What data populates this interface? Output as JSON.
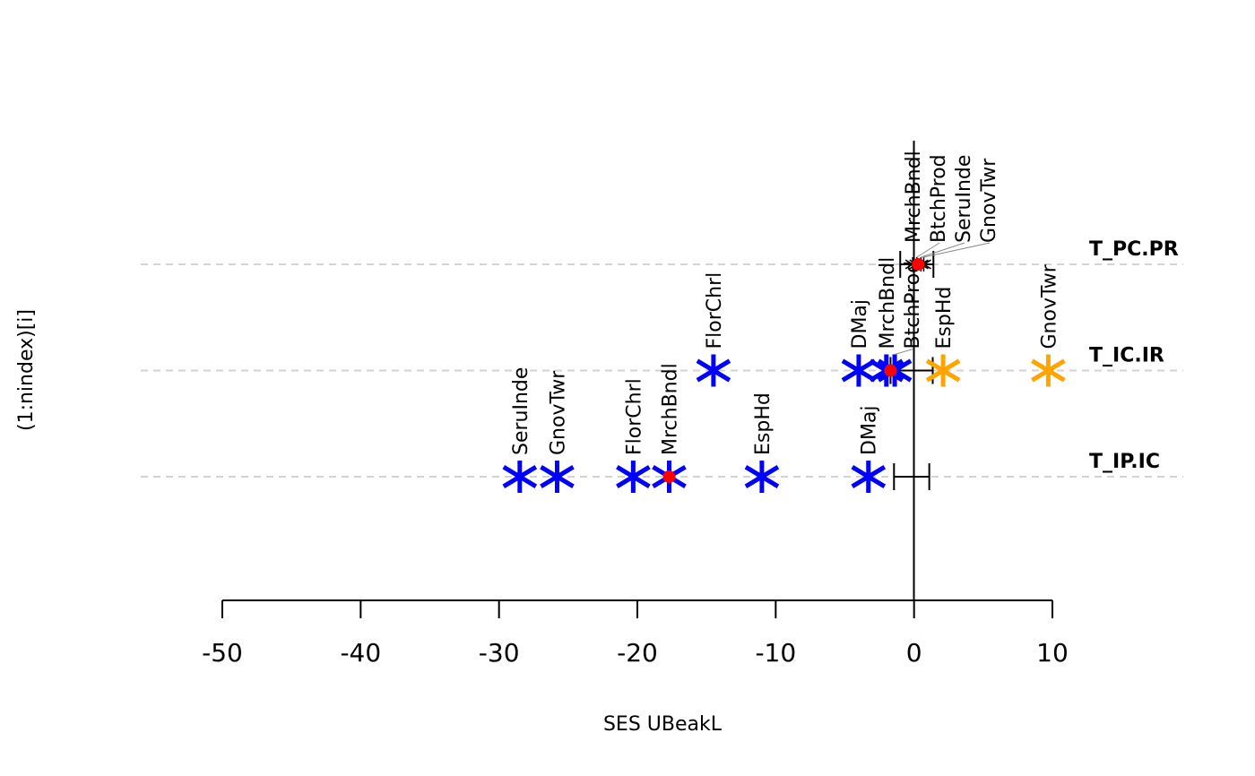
{
  "chart_data": {
    "type": "scatter",
    "title": "",
    "xlabel": "SES UBeakL",
    "ylabel": "(1:nindex)[i]",
    "xlim": [
      -50,
      10
    ],
    "xticks": [
      "-50",
      "-40",
      "-30",
      "-20",
      "-10",
      "0",
      "10"
    ],
    "xtick_values": [
      -50,
      -40,
      -30,
      -20,
      -10,
      0,
      10
    ],
    "grid": "horizontal dashed at each index",
    "colors": {
      "significant": "#0000ff",
      "positive": "#ffa500",
      "mean": "#ff0000",
      "grid": "#d3d3d3"
    },
    "groups": [
      {
        "name": "T_IP.IC",
        "index": 1,
        "mean": -17.7,
        "ci": [
          -1.45,
          1.1
        ],
        "points": [
          {
            "label": "SeruInde",
            "x": -28.5,
            "color": "#0000ff"
          },
          {
            "label": "GnovTwr",
            "x": -25.8,
            "color": "#0000ff"
          },
          {
            "label": "FlorChrl",
            "x": -20.3,
            "color": "#0000ff"
          },
          {
            "label": "MrchBndl",
            "x": -17.7,
            "color": "#0000ff"
          },
          {
            "label": "EspHd",
            "x": -11.0,
            "color": "#0000ff"
          },
          {
            "label": "DMaj",
            "x": -3.3,
            "color": "#0000ff"
          }
        ]
      },
      {
        "name": "T_IC.IR",
        "index": 2,
        "mean": -1.7,
        "ci": [
          -1.7,
          1.35
        ],
        "points": [
          {
            "label": "FlorChrl",
            "x": -14.5,
            "color": "#0000ff"
          },
          {
            "label": "DMaj",
            "x": -4.0,
            "color": "#0000ff"
          },
          {
            "label": "MrchBndl",
            "x": -2.0,
            "color": "#0000ff"
          },
          {
            "label": "BtchProd",
            "x": -1.4,
            "color": "#0000ff"
          },
          {
            "label": "EspHd",
            "x": 2.1,
            "color": "#ffa500"
          },
          {
            "label": "GnovTwr",
            "x": 9.7,
            "color": "#ffa500"
          }
        ]
      },
      {
        "name": "T_PC.PR",
        "index": 3,
        "mean": 0.3,
        "ci": [
          -1.0,
          1.4
        ],
        "points": [
          {
            "label": "MrchBndl",
            "x": -0.1,
            "color": "#000000"
          },
          {
            "label": "BtchProd",
            "x": 0.2,
            "color": "#000000"
          },
          {
            "label": "SeruInde",
            "x": 0.5,
            "color": "#000000"
          },
          {
            "label": "GnovTwr",
            "x": 0.7,
            "color": "#000000"
          }
        ]
      }
    ]
  }
}
